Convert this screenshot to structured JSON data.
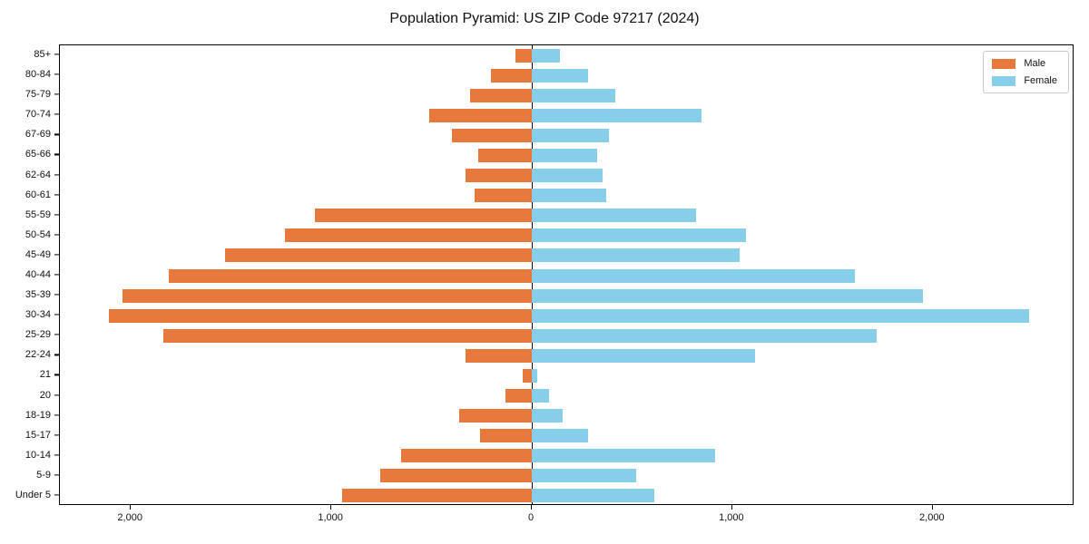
{
  "title": "Population Pyramid: US ZIP Code 97217 (2024)",
  "legend": {
    "male_label": "Male",
    "female_label": "Female"
  },
  "colors": {
    "male": "#E8793D",
    "female": "#87CEEB",
    "axis": "#000000",
    "legend_border": "#c9c9c9"
  },
  "chart_data": {
    "type": "bar",
    "subtype": "population-pyramid",
    "title": "Population Pyramid: US ZIP Code 97217 (2024)",
    "categories": [
      "85+",
      "80-84",
      "75-79",
      "70-74",
      "67-69",
      "65-66",
      "62-64",
      "60-61",
      "55-59",
      "50-54",
      "45-49",
      "40-44",
      "35-39",
      "30-34",
      "25-29",
      "22-24",
      "21",
      "20",
      "18-19",
      "15-17",
      "10-14",
      "5-9",
      "Under 5"
    ],
    "series": [
      {
        "name": "Male",
        "direction": "left",
        "values": [
          80,
          205,
          310,
          510,
          400,
          265,
          330,
          285,
          1080,
          1230,
          1530,
          1810,
          2040,
          2110,
          1840,
          330,
          45,
          130,
          360,
          260,
          650,
          755,
          945
        ]
      },
      {
        "name": "Female",
        "direction": "right",
        "values": [
          140,
          280,
          415,
          845,
          385,
          325,
          355,
          370,
          820,
          1070,
          1035,
          1610,
          1950,
          2480,
          1720,
          1115,
          25,
          85,
          155,
          280,
          915,
          520,
          610
        ]
      }
    ],
    "x_ticks": [
      {
        "value": -2000,
        "label": "2,000"
      },
      {
        "value": -1000,
        "label": "1,000"
      },
      {
        "value": 0,
        "label": "0"
      },
      {
        "value": 1000,
        "label": "1,000"
      },
      {
        "value": 2000,
        "label": "2,000"
      }
    ],
    "xlim": [
      -2355,
      2715
    ],
    "grid": false,
    "legend_position": "upper right"
  }
}
